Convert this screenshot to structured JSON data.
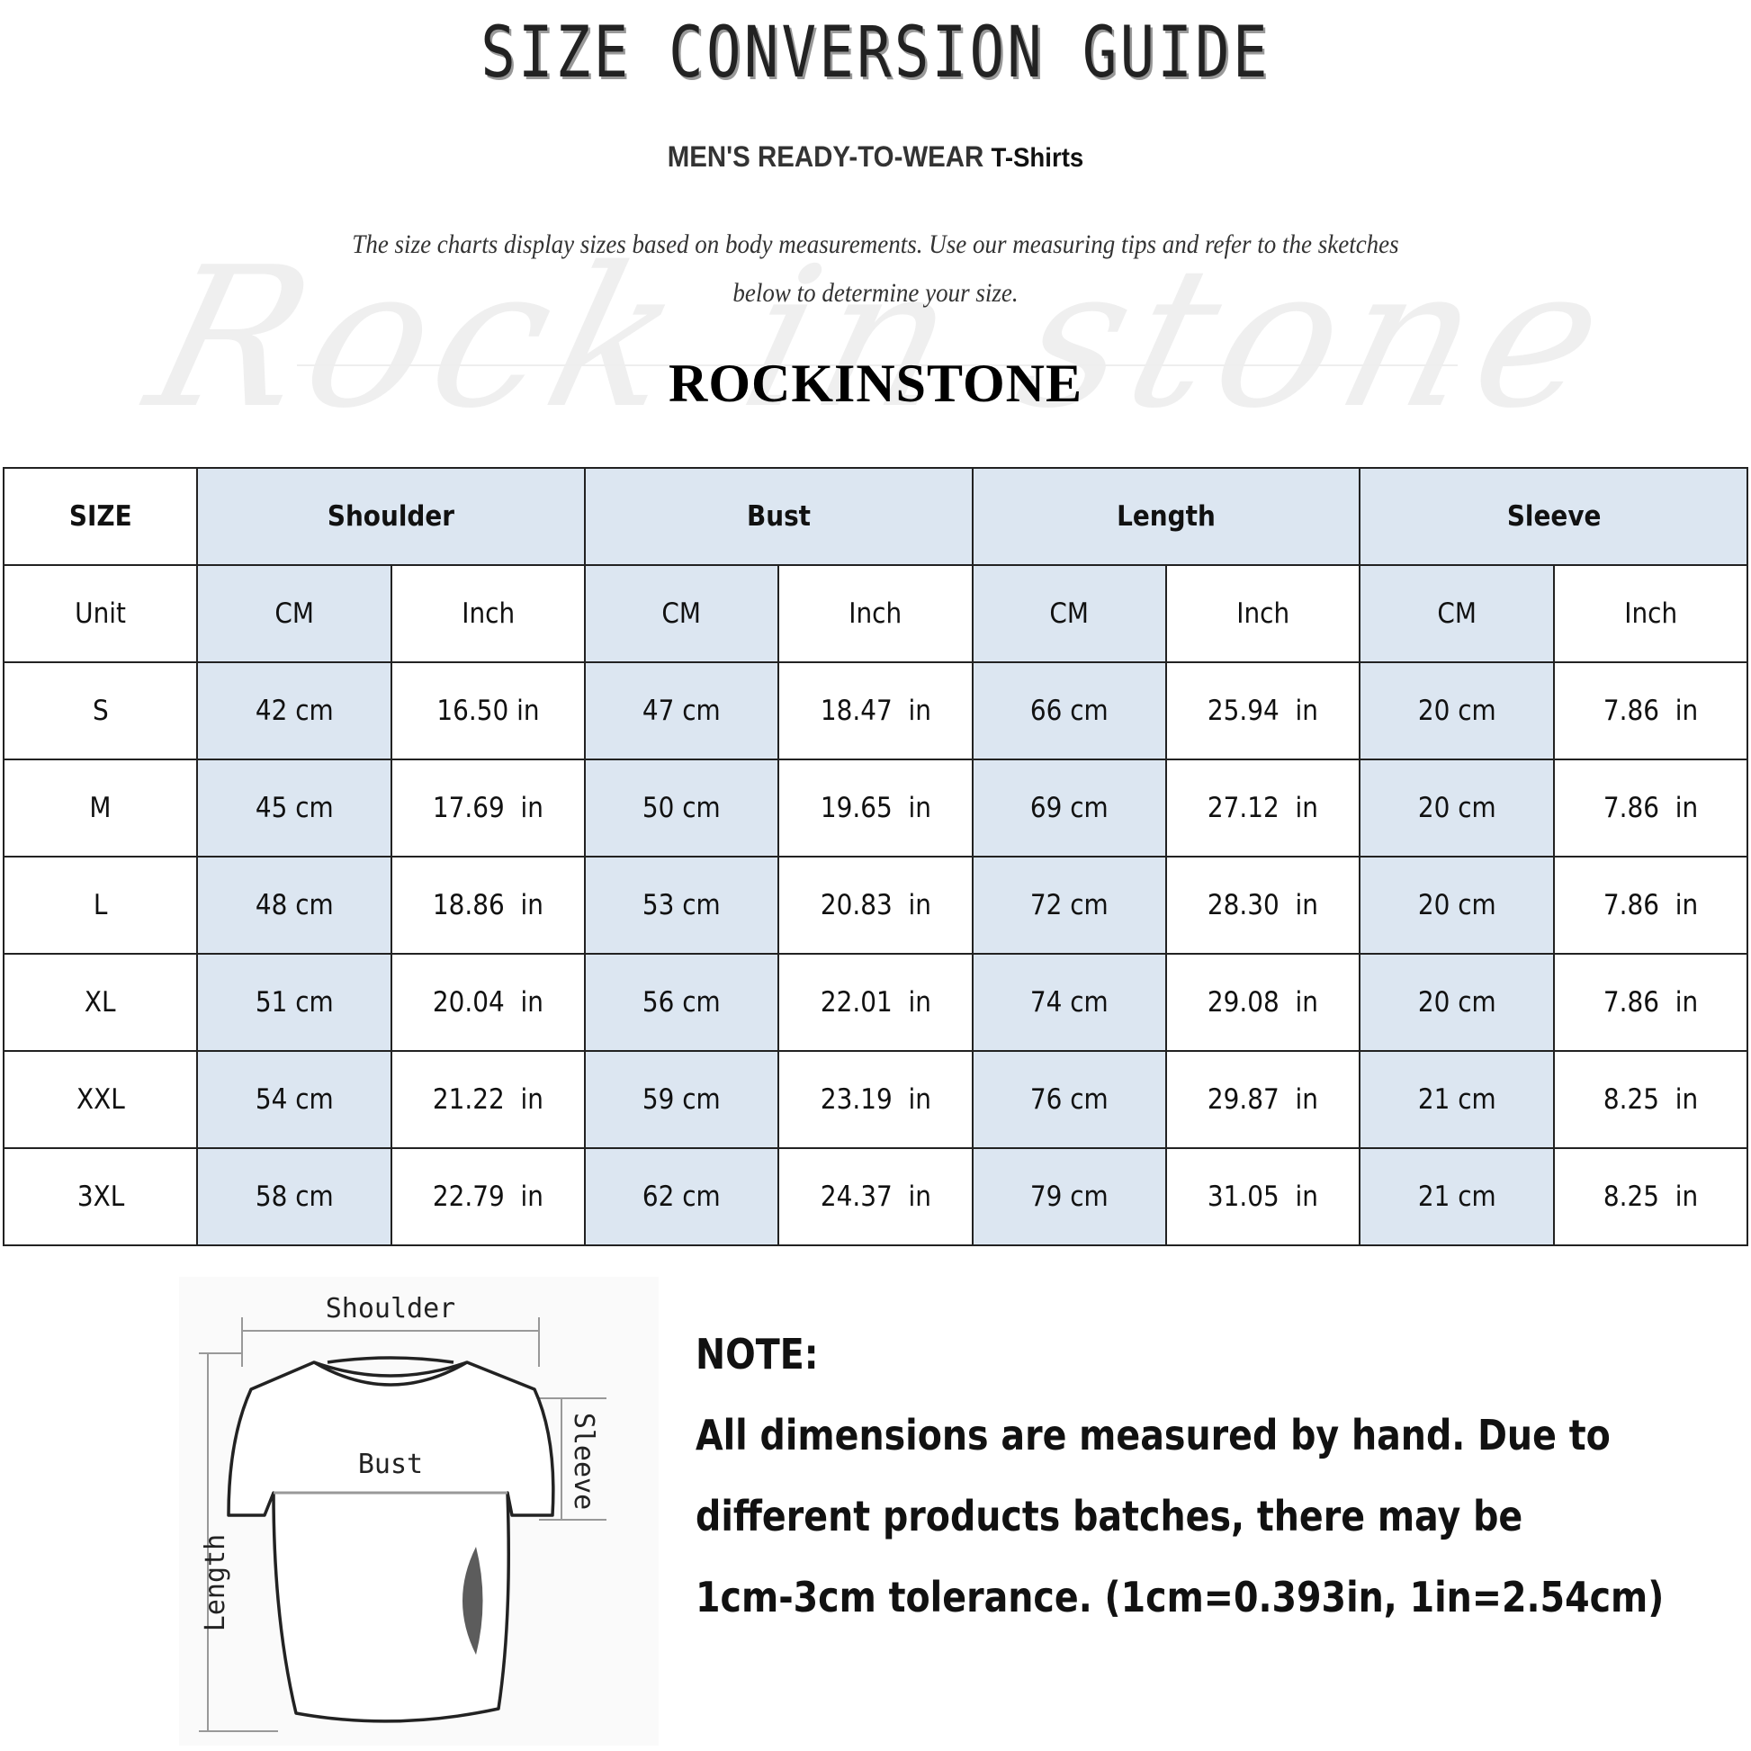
{
  "header": {
    "title": "SIZE CONVERSION GUIDE",
    "subtitle_main": "MEN'S READY-TO-WEAR",
    "subtitle_product": "T-Shirts",
    "intro_line1": "The size charts display sizes based on body measurements. Use our measuring tips and refer to the sketches",
    "intro_line2": "below to determine your size.",
    "watermark": "Rock in stone",
    "brand": "ROCKINSTONE"
  },
  "colors": {
    "header_fill": "#dce6f1",
    "border": "#222222"
  },
  "table": {
    "size_label": "SIZE",
    "unit_label": "Unit",
    "groups": [
      "Shoulder",
      "Bust",
      "Length",
      "Sleeve"
    ],
    "units": [
      "CM",
      "Inch",
      "CM",
      "Inch",
      "CM",
      "Inch",
      "CM",
      "Inch"
    ],
    "rows": [
      {
        "size": "S",
        "cells": [
          "42 cm",
          "16.50 in",
          "47 cm",
          "18.47  in",
          "66 cm",
          "25.94  in",
          "20 cm",
          "7.86  in"
        ]
      },
      {
        "size": "M",
        "cells": [
          "45 cm",
          "17.69  in",
          "50 cm",
          "19.65  in",
          "69 cm",
          "27.12  in",
          "20 cm",
          "7.86  in"
        ]
      },
      {
        "size": "L",
        "cells": [
          "48 cm",
          "18.86  in",
          "53 cm",
          "20.83  in",
          "72 cm",
          "28.30  in",
          "20 cm",
          "7.86  in"
        ]
      },
      {
        "size": "XL",
        "cells": [
          "51 cm",
          "20.04  in",
          "56 cm",
          "22.01  in",
          "74 cm",
          "29.08  in",
          "20 cm",
          "7.86  in"
        ]
      },
      {
        "size": "XXL",
        "cells": [
          "54 cm",
          "21.22  in",
          "59 cm",
          "23.19  in",
          "76 cm",
          "29.87  in",
          "21 cm",
          "8.25  in"
        ]
      },
      {
        "size": "3XL",
        "cells": [
          "58 cm",
          "22.79  in",
          "62 cm",
          "24.37  in",
          "79 cm",
          "31.05  in",
          "21 cm",
          "8.25  in"
        ]
      }
    ]
  },
  "diagram": {
    "shoulder": "Shoulder",
    "bust": "Bust",
    "length": "Length",
    "sleeve": "Sleeve"
  },
  "note": {
    "heading": "NOTE:",
    "lines": [
      "All dimensions are measured by hand. Due to",
      "different products batches, there may be",
      "1cm-3cm tolerance. (1cm=0.393in, 1in=2.54cm)"
    ]
  }
}
